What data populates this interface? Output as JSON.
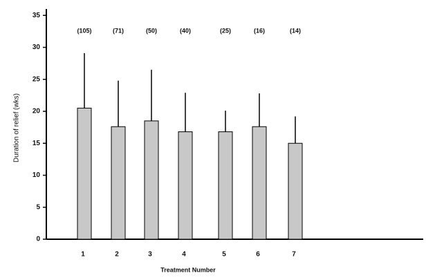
{
  "chart_data": {
    "type": "bar",
    "categories": [
      "1",
      "2",
      "3",
      "4",
      "5",
      "6",
      "7"
    ],
    "values": [
      20.5,
      17.6,
      18.5,
      16.8,
      16.8,
      17.6,
      15.0
    ],
    "errors": [
      8.6,
      7.2,
      8.0,
      6.1,
      3.3,
      5.2,
      4.2
    ],
    "annotations": [
      "(105)",
      "(71)",
      "(50)",
      "(40)",
      "(25)",
      "(16)",
      "(14)"
    ],
    "color": "#c8c8c8",
    "xlabel": "Treatment Number",
    "ylabel": "Duration of relief (wks)",
    "ylim": [
      0,
      36
    ],
    "yticks": [
      0,
      5,
      10,
      15,
      20,
      25,
      30,
      35
    ]
  }
}
